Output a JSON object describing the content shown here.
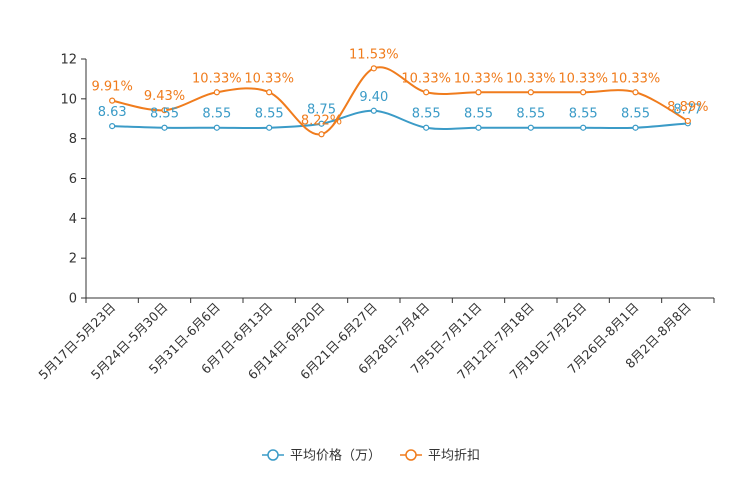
{
  "chart_data": {
    "type": "line",
    "title": "",
    "xlabel": "",
    "ylabel": "",
    "ylim": [
      0,
      12
    ],
    "yticks": [
      0,
      2,
      4,
      6,
      8,
      10,
      12
    ],
    "categories": [
      "5月17日-5月23日",
      "5月24日-5月30日",
      "5月31日-6月6日",
      "6月7日-6月13日",
      "6月14日-6月20日",
      "6月21日-6月27日",
      "6月28日-7月4日",
      "7月5日-7月11日",
      "7月12日-7月18日",
      "7月19日-7月25日",
      "7月26日-8月1日",
      "8月2日-8月8日"
    ],
    "series": [
      {
        "name": "平均价格（万）",
        "color": "#3b9bc7",
        "values": [
          8.63,
          8.55,
          8.55,
          8.55,
          8.75,
          9.4,
          8.55,
          8.55,
          8.55,
          8.55,
          8.55,
          8.77
        ],
        "labels": [
          "8.63",
          "8.55",
          "8.55",
          "8.55",
          "8.75",
          "9.40",
          "8.55",
          "8.55",
          "8.55",
          "8.55",
          "8.55",
          "8.77"
        ]
      },
      {
        "name": "平均折扣",
        "color": "#f07c1d",
        "values": [
          9.91,
          9.43,
          10.33,
          10.33,
          8.22,
          11.53,
          10.33,
          10.33,
          10.33,
          10.33,
          10.33,
          8.89
        ],
        "labels": [
          "9.91%",
          "9.43%",
          "10.33%",
          "10.33%",
          "8.22%",
          "11.53%",
          "10.33%",
          "10.33%",
          "10.33%",
          "10.33%",
          "10.33%",
          "8.89%"
        ]
      }
    ],
    "legend_position": "bottom-center",
    "grid": false
  }
}
